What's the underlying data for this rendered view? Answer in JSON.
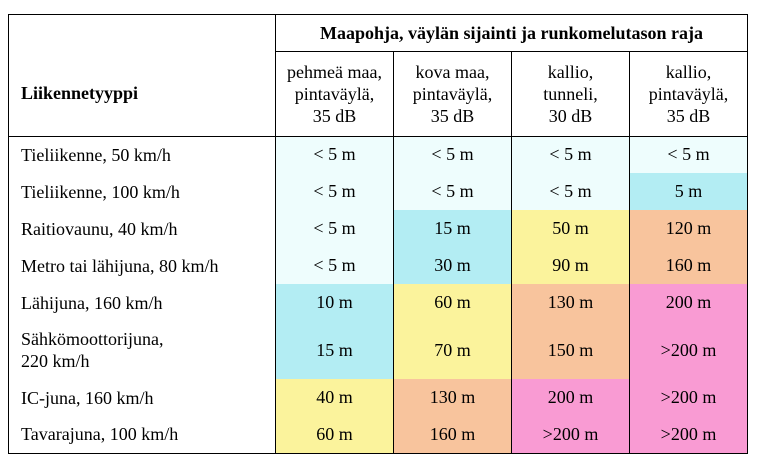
{
  "table": {
    "group_header": "Maapohja, väylän sijainti ja runkomelutason raja",
    "row_header": "Liikennetyyppi",
    "columns": [
      [
        "pehmeä maa,",
        "pintaväylä,",
        "35 dB"
      ],
      [
        "kova maa,",
        "pintaväylä,",
        "35 dB"
      ],
      [
        "kallio,",
        "tunneli,",
        "30 dB"
      ],
      [
        "kallio,",
        "pintaväylä,",
        "35 dB"
      ]
    ],
    "rows": [
      {
        "label": [
          "Tieliikenne, 50 km/h"
        ],
        "values": [
          "< 5 m",
          "< 5 m",
          "< 5 m",
          "< 5 m"
        ]
      },
      {
        "label": [
          "Tieliikenne, 100 km/h"
        ],
        "values": [
          "< 5 m",
          "< 5 m",
          "< 5 m",
          "5 m"
        ]
      },
      {
        "label": [
          "Raitiovaunu, 40 km/h"
        ],
        "values": [
          "< 5 m",
          "15 m",
          "50 m",
          "120 m"
        ]
      },
      {
        "label": [
          "Metro tai lähijuna, 80 km/h"
        ],
        "values": [
          "< 5 m",
          "30 m",
          "90 m",
          "160 m"
        ]
      },
      {
        "label": [
          "Lähijuna, 160 km/h"
        ],
        "values": [
          "10 m",
          "60 m",
          "130 m",
          "200 m"
        ]
      },
      {
        "label": [
          "Sähkömoottorijuna,",
          "220 km/h"
        ],
        "values": [
          "15 m",
          "70 m",
          "150 m",
          ">200 m"
        ]
      },
      {
        "label": [
          "IC-juna, 160 km/h"
        ],
        "values": [
          "40 m",
          "130 m",
          "200 m",
          ">200 m"
        ]
      },
      {
        "label": [
          "Tavarajuna, 100 km/h"
        ],
        "values": [
          "60 m",
          "160 m",
          ">200 m",
          ">200 m"
        ]
      }
    ]
  },
  "colors": {
    "very_light_cyan": "#eefdfd",
    "cyan": "#b3edf3",
    "yellow": "#fbf39c",
    "orange": "#f8c49d",
    "pink": "#f99bd3"
  }
}
